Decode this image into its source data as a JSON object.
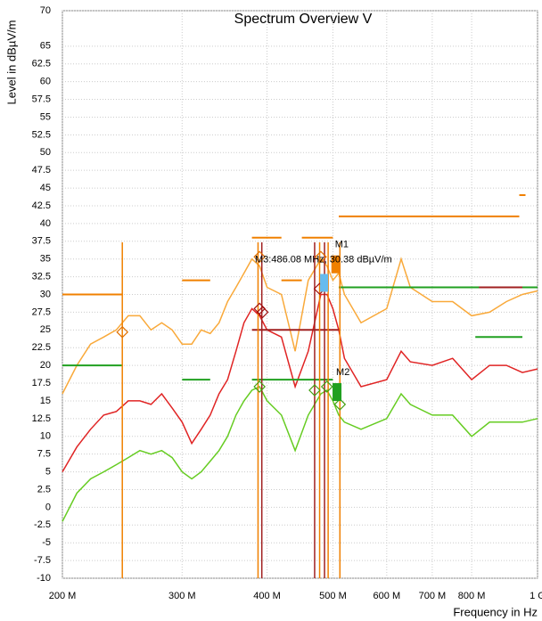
{
  "chart_data": {
    "type": "line",
    "title": "Spectrum Overview V",
    "y_label": "Level in dBµV/m",
    "x_label": "Frequency in Hz",
    "log_x": true,
    "grid": true,
    "xlim": [
      200000000,
      1000000000
    ],
    "ylim": [
      -10,
      70
    ],
    "xticks": [
      {
        "value": 200000000,
        "label": "200 M"
      },
      {
        "value": 300000000,
        "label": "300 M"
      },
      {
        "value": 400000000,
        "label": "400 M"
      },
      {
        "value": 500000000,
        "label": "500 M"
      },
      {
        "value": 600000000,
        "label": "600 M"
      },
      {
        "value": 700000000,
        "label": "700 M"
      },
      {
        "value": 800000000,
        "label": "800 M"
      },
      {
        "value": 1000000000,
        "label": "1 G"
      }
    ],
    "yticks": [
      70,
      65,
      62.5,
      60,
      57.5,
      55,
      52.5,
      50,
      47.5,
      45,
      42.5,
      40,
      37.5,
      35,
      32.5,
      30,
      27.5,
      25,
      22.5,
      20,
      17.5,
      15,
      12.5,
      10,
      7.5,
      5,
      2.5,
      0,
      -2.5,
      -5,
      -7.5,
      -10
    ],
    "x": [
      200000000,
      210000000,
      220000000,
      230000000,
      240000000,
      250000000,
      260000000,
      270000000,
      280000000,
      290000000,
      300000000,
      310000000,
      320000000,
      330000000,
      340000000,
      350000000,
      360000000,
      370000000,
      380000000,
      390000000,
      400000000,
      420000000,
      440000000,
      460000000,
      480000000,
      490000000,
      500000000,
      510000000,
      520000000,
      550000000,
      600000000,
      630000000,
      650000000,
      700000000,
      750000000,
      800000000,
      850000000,
      900000000,
      950000000,
      1000000000
    ],
    "series": [
      {
        "color": "#f9a93a",
        "values": [
          16,
          20,
          23,
          24,
          25,
          27,
          27,
          25,
          26,
          25,
          23,
          23,
          25,
          24.5,
          26,
          29,
          31,
          33,
          35,
          34,
          31,
          30,
          22,
          32,
          35,
          34,
          32,
          33,
          30,
          26,
          28,
          35,
          31,
          29,
          29,
          27,
          27.5,
          29,
          30,
          30.5
        ]
      },
      {
        "color": "#e02424",
        "values": [
          5,
          8.5,
          11,
          13,
          13.5,
          15,
          15,
          14.5,
          16,
          14,
          12,
          9,
          11,
          13,
          16,
          18,
          22,
          26,
          28,
          27,
          25,
          24,
          17,
          22,
          30,
          30,
          28,
          25,
          21,
          17,
          18,
          22,
          20.5,
          20,
          21,
          18,
          20,
          20,
          19,
          19.5
        ]
      },
      {
        "color": "#66cc22",
        "values": [
          -2,
          2,
          4,
          5,
          6,
          7,
          8,
          7.5,
          8,
          7,
          5,
          4,
          5,
          6.5,
          8,
          10,
          13,
          15,
          16.5,
          17,
          15,
          13,
          8,
          13,
          16,
          16.5,
          15,
          13,
          12,
          11,
          12.5,
          16,
          14.5,
          13,
          13,
          10,
          12,
          12,
          12,
          12.5
        ]
      }
    ],
    "limit_lines": [
      {
        "color": "#f08000",
        "x": [
          200000000,
          245000000
        ],
        "values": [
          30,
          30
        ]
      },
      {
        "color": "#f08000",
        "x": [
          300000000,
          330000000
        ],
        "values": [
          32,
          32
        ]
      },
      {
        "color": "#f08000",
        "x": [
          380000000,
          420000000
        ],
        "values": [
          38,
          38
        ]
      },
      {
        "color": "#f08000",
        "x": [
          420000000,
          450000000
        ],
        "values": [
          32,
          32
        ]
      },
      {
        "color": "#f08000",
        "x": [
          450000000,
          500000000
        ],
        "values": [
          38,
          38
        ]
      },
      {
        "color": "#f08000",
        "x": [
          510000000,
          940000000
        ],
        "values": [
          41,
          41
        ]
      },
      {
        "color": "#f08000",
        "x": [
          940000000,
          960000000
        ],
        "values": [
          44,
          44
        ]
      },
      {
        "color": "#20a020",
        "x": [
          200000000,
          245000000
        ],
        "values": [
          20,
          20
        ]
      },
      {
        "color": "#20a020",
        "x": [
          300000000,
          330000000
        ],
        "values": [
          18,
          18
        ]
      },
      {
        "color": "#20a020",
        "x": [
          380000000,
          500000000
        ],
        "values": [
          18,
          18
        ]
      },
      {
        "color": "#20a020",
        "x": [
          510000000,
          1000000000
        ],
        "values": [
          31,
          31
        ]
      },
      {
        "color": "#20a020",
        "x": [
          810000000,
          950000000
        ],
        "values": [
          24,
          24
        ]
      },
      {
        "color": "#a02020",
        "x": [
          380000000,
          510000000
        ],
        "values": [
          25,
          25
        ]
      },
      {
        "color": "#a02020",
        "x": [
          820000000,
          950000000
        ],
        "values": [
          31,
          31
        ]
      }
    ],
    "vertical_lines": [
      {
        "color": "#f08000",
        "x": 245000000
      },
      {
        "color": "#f08000",
        "x": 388000000
      },
      {
        "color": "#f08000",
        "x": 478000000
      },
      {
        "color": "#f08000",
        "x": 492000000
      },
      {
        "color": "#f08000",
        "x": 512000000
      },
      {
        "color": "#a02020",
        "x": 393000000
      },
      {
        "color": "#a02020",
        "x": 470000000
      },
      {
        "color": "#a02020",
        "x": 486000000
      }
    ],
    "peaks": [
      {
        "color": "#e07000",
        "x": [
          245000000,
          390000000,
          480000000
        ],
        "values": [
          24.7,
          35.3,
          35.3
        ]
      },
      {
        "color": "#a01010",
        "x": [
          390000000,
          394000000,
          478000000
        ],
        "values": [
          28,
          27.5,
          30.8
        ]
      },
      {
        "color": "#40a010",
        "x": [
          390000000,
          470000000,
          490000000,
          512000000
        ],
        "values": [
          17,
          16.5,
          17,
          14.5
        ]
      }
    ],
    "markers": [
      {
        "label": "M1",
        "color": "#f08000",
        "x": 505000000,
        "value": 35.5
      },
      {
        "label": "M2",
        "color": "#20a020",
        "x": 507000000,
        "value": 17.5
      }
    ],
    "annotation": {
      "text": "M3:486.08 MHz, 30.38 dBµV/m",
      "color": "#66bbee",
      "x": 486080000,
      "value": 30.38
    }
  }
}
